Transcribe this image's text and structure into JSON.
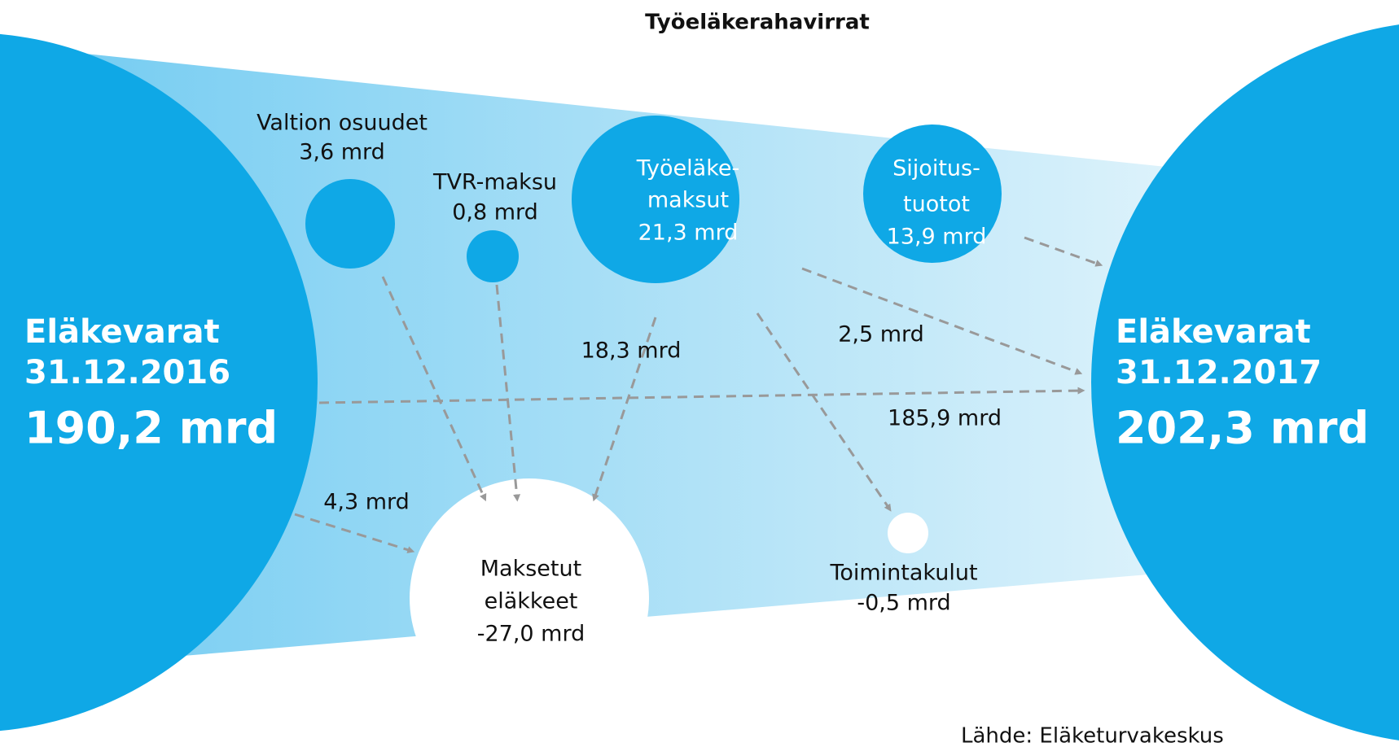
{
  "title": "Työeläkerahavirrat",
  "nodes": [
    {
      "lines": [
        "Eläkevarat",
        "31.12.2016",
        "190,2 mrd"
      ]
    },
    {
      "lines": [
        "Valtion osuudet",
        "3,6 mrd"
      ]
    },
    {
      "lines": [
        "TVR-maksu",
        "0,8 mrd"
      ]
    },
    {
      "lines": [
        "Työeläke-",
        "maksut",
        "21,3 mrd"
      ]
    },
    {
      "lines": [
        "Sijoitus-",
        "tuotot",
        "13,9 mrd"
      ]
    },
    {
      "lines": [
        "Maksetut",
        "eläkkeet",
        "-27,0 mrd"
      ]
    },
    {
      "lines": [
        "Toimintakulut",
        "-0,5 mrd"
      ]
    },
    {
      "lines": [
        "Eläkevarat",
        "31.12.2017",
        "202,3 mrd"
      ]
    }
  ],
  "flows": [
    "18,3 mrd",
    "2,5 mrd",
    "185,9 mrd",
    "4,3 mrd"
  ],
  "source": "Lähde: Eläketurvakeskus"
}
